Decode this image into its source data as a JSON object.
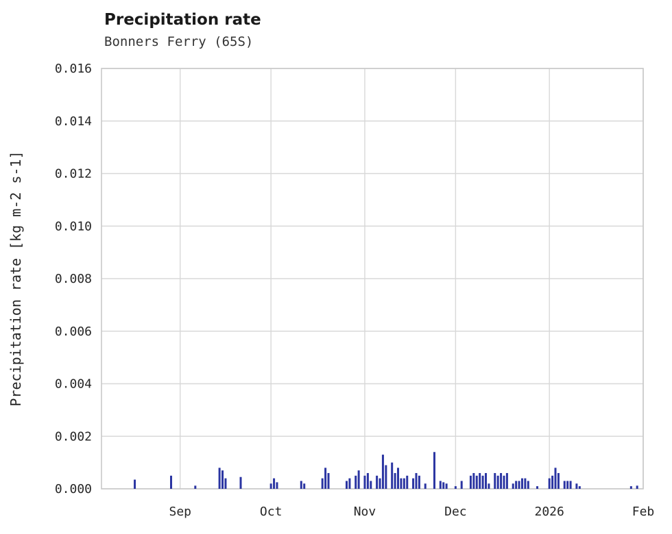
{
  "chart_data": {
    "type": "bar",
    "title": "Precipitation rate",
    "subtitle": "Bonners Ferry (65S)",
    "xlabel": "",
    "ylabel": "Precipitation rate [kg m-2 s-1]",
    "ylim": [
      0,
      0.016
    ],
    "x_range": [
      "2025-08-06",
      "2026-02-01"
    ],
    "grid": true,
    "legend": "none",
    "colors": {
      "bar": "#2b35a2",
      "gridline": "#d8d8d8",
      "border": "#c9c9c9",
      "plot_bg": "#ffffff",
      "tick_text": "#262626"
    },
    "yticks": [
      {
        "value": 0.0,
        "label": "0.000"
      },
      {
        "value": 0.002,
        "label": "0.002"
      },
      {
        "value": 0.004,
        "label": "0.004"
      },
      {
        "value": 0.006,
        "label": "0.006"
      },
      {
        "value": 0.008,
        "label": "0.008"
      },
      {
        "value": 0.01,
        "label": "0.010"
      },
      {
        "value": 0.012,
        "label": "0.012"
      },
      {
        "value": 0.014,
        "label": "0.014"
      },
      {
        "value": 0.016,
        "label": "0.016"
      }
    ],
    "xticks": [
      {
        "label": "Sep",
        "date": "2025-09-01"
      },
      {
        "label": "Oct",
        "date": "2025-10-01"
      },
      {
        "label": "Nov",
        "date": "2025-11-01"
      },
      {
        "label": "Dec",
        "date": "2025-12-01"
      },
      {
        "label": "2026",
        "date": "2026-01-01"
      },
      {
        "label": "Feb",
        "date": "2026-02-01"
      }
    ],
    "series": [
      {
        "name": "Precipitation rate",
        "points": [
          [
            "2025-08-17",
            0.00035
          ],
          [
            "2025-08-29",
            0.0005
          ],
          [
            "2025-09-06",
            0.00012
          ],
          [
            "2025-09-14",
            0.0008
          ],
          [
            "2025-09-15",
            0.0007
          ],
          [
            "2025-09-16",
            0.0004
          ],
          [
            "2025-09-21",
            0.00045
          ],
          [
            "2025-10-01",
            0.0002
          ],
          [
            "2025-10-02",
            0.0004
          ],
          [
            "2025-10-03",
            0.00025
          ],
          [
            "2025-10-11",
            0.0003
          ],
          [
            "2025-10-12",
            0.0002
          ],
          [
            "2025-10-18",
            0.0004
          ],
          [
            "2025-10-19",
            0.0008
          ],
          [
            "2025-10-20",
            0.0006
          ],
          [
            "2025-10-26",
            0.0003
          ],
          [
            "2025-10-27",
            0.0004
          ],
          [
            "2025-10-29",
            0.0005
          ],
          [
            "2025-10-30",
            0.0007
          ],
          [
            "2025-11-01",
            0.0005
          ],
          [
            "2025-11-02",
            0.0006
          ],
          [
            "2025-11-03",
            0.0003
          ],
          [
            "2025-11-05",
            0.0005
          ],
          [
            "2025-11-06",
            0.0004
          ],
          [
            "2025-11-07",
            0.0013
          ],
          [
            "2025-11-08",
            0.0009
          ],
          [
            "2025-11-10",
            0.001
          ],
          [
            "2025-11-11",
            0.0006
          ],
          [
            "2025-11-12",
            0.0008
          ],
          [
            "2025-11-13",
            0.0004
          ],
          [
            "2025-11-14",
            0.0004
          ],
          [
            "2025-11-15",
            0.0005
          ],
          [
            "2025-11-17",
            0.0004
          ],
          [
            "2025-11-18",
            0.0006
          ],
          [
            "2025-11-19",
            0.0005
          ],
          [
            "2025-11-21",
            0.0002
          ],
          [
            "2025-11-24",
            0.0014
          ],
          [
            "2025-11-26",
            0.0003
          ],
          [
            "2025-11-27",
            0.00025
          ],
          [
            "2025-11-28",
            0.0002
          ],
          [
            "2025-12-01",
            0.0001
          ],
          [
            "2025-12-03",
            0.0003
          ],
          [
            "2025-12-06",
            0.0005
          ],
          [
            "2025-12-07",
            0.0006
          ],
          [
            "2025-12-08",
            0.0005
          ],
          [
            "2025-12-09",
            0.0006
          ],
          [
            "2025-12-10",
            0.0005
          ],
          [
            "2025-12-11",
            0.0006
          ],
          [
            "2025-12-12",
            0.0002
          ],
          [
            "2025-12-14",
            0.0006
          ],
          [
            "2025-12-15",
            0.0005
          ],
          [
            "2025-12-16",
            0.0006
          ],
          [
            "2025-12-17",
            0.0005
          ],
          [
            "2025-12-18",
            0.0006
          ],
          [
            "2025-12-20",
            0.0002
          ],
          [
            "2025-12-21",
            0.0003
          ],
          [
            "2025-12-22",
            0.0003
          ],
          [
            "2025-12-23",
            0.0004
          ],
          [
            "2025-12-24",
            0.0004
          ],
          [
            "2025-12-25",
            0.0003
          ],
          [
            "2025-12-28",
            0.0001
          ],
          [
            "2026-01-01",
            0.0004
          ],
          [
            "2026-01-02",
            0.0005
          ],
          [
            "2026-01-03",
            0.0008
          ],
          [
            "2026-01-04",
            0.0006
          ],
          [
            "2026-01-06",
            0.0003
          ],
          [
            "2026-01-07",
            0.0003
          ],
          [
            "2026-01-08",
            0.0003
          ],
          [
            "2026-01-10",
            0.0002
          ],
          [
            "2026-01-11",
            0.0001
          ],
          [
            "2026-01-28",
            0.0001
          ],
          [
            "2026-01-30",
            0.00012
          ]
        ]
      }
    ]
  }
}
